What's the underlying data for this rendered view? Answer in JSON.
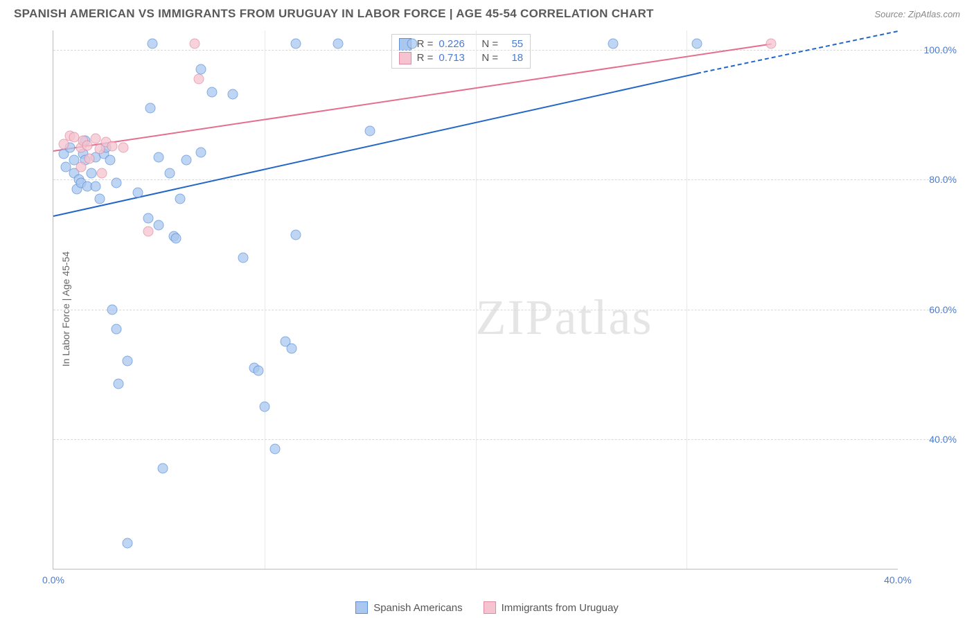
{
  "header": {
    "title": "SPANISH AMERICAN VS IMMIGRANTS FROM URUGUAY IN LABOR FORCE | AGE 45-54 CORRELATION CHART",
    "source": "Source: ZipAtlas.com"
  },
  "axes": {
    "y_label": "In Labor Force | Age 45-54",
    "xlim": [
      0,
      40
    ],
    "ylim": [
      20,
      103
    ],
    "y_ticks": [
      40,
      60,
      80,
      100
    ],
    "y_tick_labels": [
      "40.0%",
      "60.0%",
      "80.0%",
      "100.0%"
    ],
    "x_ticks": [
      0,
      10,
      20,
      30,
      40
    ],
    "x_tick_labels": [
      "0.0%",
      "",
      "",
      "",
      "40.0%"
    ],
    "x_minor_ticks": [
      10,
      20,
      30
    ],
    "grid_color": "#d8d8d8",
    "axis_color": "#bbbbbb",
    "tick_color": "#4a7bd0",
    "label_fontsize": 14
  },
  "series": [
    {
      "name": "Spanish Americans",
      "fill": "#a9c7ef",
      "stroke": "#5b8fd6",
      "line_color": "#2166c6",
      "r": 0.226,
      "n": 55,
      "trend": {
        "x1": 0,
        "y1": 74.5,
        "x2": 30.5,
        "y2": 96.5,
        "dash_to_x": 40,
        "dash_to_y": 103
      },
      "points": [
        [
          0.5,
          84
        ],
        [
          0.6,
          82
        ],
        [
          0.8,
          85
        ],
        [
          1,
          83
        ],
        [
          1,
          81
        ],
        [
          1.1,
          78.5
        ],
        [
          1.2,
          80
        ],
        [
          1.3,
          79.5
        ],
        [
          1.4,
          84
        ],
        [
          1.5,
          86
        ],
        [
          1.5,
          83
        ],
        [
          1.6,
          79
        ],
        [
          1.8,
          81
        ],
        [
          2,
          79
        ],
        [
          2,
          83.5
        ],
        [
          2.2,
          77
        ],
        [
          2.4,
          84
        ],
        [
          2.5,
          85
        ],
        [
          2.7,
          83
        ],
        [
          2.8,
          60
        ],
        [
          3,
          57
        ],
        [
          3,
          79.5
        ],
        [
          3.1,
          48.5
        ],
        [
          3.5,
          24
        ],
        [
          3.5,
          52
        ],
        [
          4,
          78
        ],
        [
          4.5,
          74
        ],
        [
          4.6,
          91
        ],
        [
          4.7,
          101
        ],
        [
          5,
          83.5
        ],
        [
          5,
          73
        ],
        [
          5.2,
          35.5
        ],
        [
          5.5,
          81
        ],
        [
          5.7,
          71.3
        ],
        [
          5.8,
          71
        ],
        [
          6,
          77
        ],
        [
          6.3,
          83
        ],
        [
          7,
          84.2
        ],
        [
          7,
          97
        ],
        [
          7.5,
          93.5
        ],
        [
          8.5,
          93.2
        ],
        [
          9,
          68
        ],
        [
          9.5,
          51
        ],
        [
          9.7,
          50.5
        ],
        [
          10,
          45
        ],
        [
          10.5,
          38.5
        ],
        [
          11,
          55
        ],
        [
          11.3,
          54
        ],
        [
          11.5,
          101
        ],
        [
          11.5,
          71.5
        ],
        [
          13.5,
          101
        ],
        [
          15,
          87.5
        ],
        [
          17,
          101
        ],
        [
          26.5,
          101
        ],
        [
          30.5,
          101
        ]
      ]
    },
    {
      "name": "Immigrants from Uruguay",
      "fill": "#f6c4d0",
      "stroke": "#e08aa2",
      "line_color": "#e56d8e",
      "r": 0.713,
      "n": 18,
      "trend": {
        "x1": 0,
        "y1": 84.5,
        "x2": 34,
        "y2": 101
      },
      "points": [
        [
          0.5,
          85.5
        ],
        [
          0.8,
          86.8
        ],
        [
          1,
          86.5
        ],
        [
          1.3,
          85
        ],
        [
          1.3,
          82
        ],
        [
          1.4,
          86
        ],
        [
          1.6,
          85.3
        ],
        [
          1.7,
          83.2
        ],
        [
          2,
          86.3
        ],
        [
          2.2,
          84.7
        ],
        [
          2.3,
          81
        ],
        [
          2.5,
          85.8
        ],
        [
          2.8,
          85.2
        ],
        [
          3.3,
          85
        ],
        [
          4.5,
          72
        ],
        [
          6.7,
          101
        ],
        [
          6.9,
          95.5
        ],
        [
          34,
          101
        ]
      ]
    }
  ],
  "legend_top": {
    "labels": {
      "r": "R =",
      "n": "N ="
    }
  },
  "legend_bottom": {
    "items": [
      "Spanish Americans",
      "Immigrants from Uruguay"
    ]
  },
  "watermark": {
    "text_a": "ZIP",
    "text_b": "atlas"
  },
  "style": {
    "dot_size": 15,
    "dot_opacity": 0.75,
    "background": "#ffffff",
    "title_color": "#5a5a5a",
    "title_fontsize": 17
  }
}
